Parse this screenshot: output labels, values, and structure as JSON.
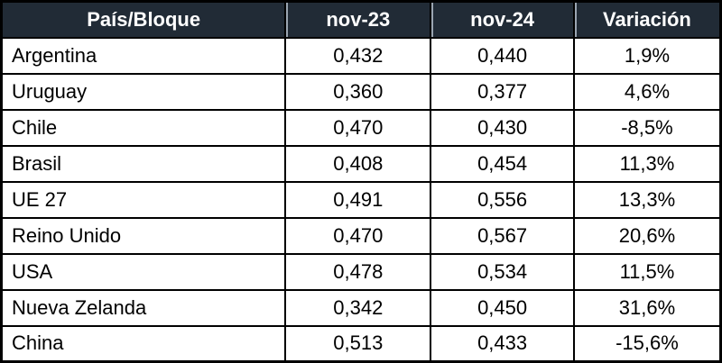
{
  "colors": {
    "header_bg": "#212b36",
    "header_text": "#ffffff",
    "border": "#000000",
    "body_bg": "#ffffff"
  },
  "chart_data": {
    "type": "table",
    "columns": [
      "País/Bloque",
      "nov-23",
      "nov-24",
      "Variación"
    ],
    "rows": [
      [
        "Argentina",
        "0,432",
        "0,440",
        "1,9%"
      ],
      [
        "Uruguay",
        "0,360",
        "0,377",
        "4,6%"
      ],
      [
        "Chile",
        "0,470",
        "0,430",
        "-8,5%"
      ],
      [
        "Brasil",
        "0,408",
        "0,454",
        "11,3%"
      ],
      [
        "UE 27",
        "0,491",
        "0,556",
        "13,3%"
      ],
      [
        "Reino Unido",
        "0,470",
        "0,567",
        "20,6%"
      ],
      [
        "USA",
        "0,478",
        "0,534",
        "11,5%"
      ],
      [
        "Nueva Zelanda",
        "0,342",
        "0,450",
        "31,6%"
      ],
      [
        "China",
        "0,513",
        "0,433",
        "-15,6%"
      ]
    ]
  }
}
